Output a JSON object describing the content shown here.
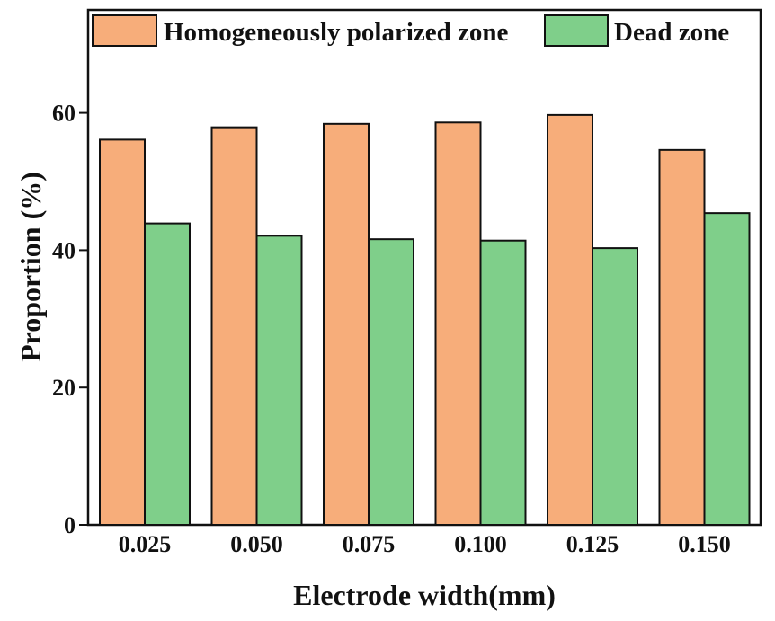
{
  "chart_data": {
    "type": "bar",
    "title": "",
    "xlabel": "Electrode width(mm)",
    "ylabel": "Proportion (%)",
    "categories": [
      "0.025",
      "0.050",
      "0.075",
      "0.100",
      "0.125",
      "0.150"
    ],
    "series": [
      {
        "name": "Homogeneously polarized zone",
        "color": "#F7AD7A",
        "values": [
          56.1,
          57.9,
          58.4,
          58.6,
          59.7,
          54.6
        ]
      },
      {
        "name": "Dead zone",
        "color": "#7FCF8A",
        "values": [
          43.9,
          42.1,
          41.6,
          41.4,
          40.3,
          45.4
        ]
      }
    ],
    "ylim": [
      0,
      75
    ],
    "yticks": [
      0,
      20,
      40,
      60
    ],
    "grid": false,
    "legend": "top"
  }
}
